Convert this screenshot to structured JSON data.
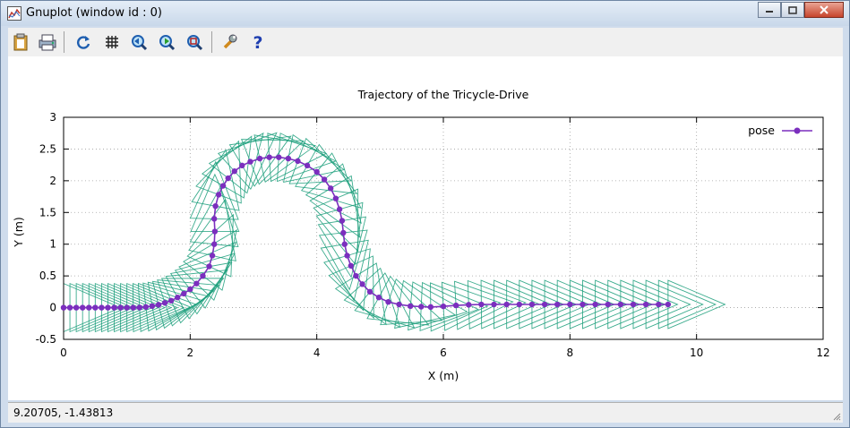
{
  "window": {
    "title": "Gnuplot (window id : 0)"
  },
  "toolbar": {
    "buttons": [
      {
        "name": "copy-clipboard-button",
        "icon": "clipboard-icon"
      },
      {
        "name": "print-button",
        "icon": "print-icon"
      },
      {
        "name": "replot-button",
        "icon": "refresh-icon"
      },
      {
        "name": "grid-button",
        "icon": "grid-icon"
      },
      {
        "name": "zoom-prev-button",
        "icon": "zoom-previous-icon"
      },
      {
        "name": "zoom-next-button",
        "icon": "zoom-next-icon"
      },
      {
        "name": "autoscale-button",
        "icon": "zoom-autoscale-icon"
      },
      {
        "name": "options-button",
        "icon": "wrench-icon"
      },
      {
        "name": "help-button",
        "icon": "help-icon"
      }
    ]
  },
  "status": {
    "coords": "9.20705, -1.43813"
  },
  "colors": {
    "pose": "#7b2fbe",
    "body": "#1a9e7a"
  },
  "chart_data": {
    "type": "line",
    "title": "Trajectory of the Tricycle-Drive",
    "xlabel": "X (m)",
    "ylabel": "Y (m)",
    "xlim": [
      0,
      12
    ],
    "ylim": [
      -0.5,
      3
    ],
    "xticks": [
      0,
      2,
      4,
      6,
      8,
      10,
      12
    ],
    "yticks": [
      -0.5,
      0,
      0.5,
      1,
      1.5,
      2,
      2.5,
      3
    ],
    "grid": true,
    "legend_position": "top-right",
    "series": [
      {
        "name": "pose",
        "x": [
          0,
          0.1,
          0.2,
          0.3,
          0.4,
          0.5,
          0.6,
          0.7,
          0.8,
          0.9,
          1.0,
          1.1,
          1.2,
          1.3,
          1.4,
          1.5,
          1.6,
          1.7,
          1.8,
          1.9,
          2.0,
          2.1,
          2.2,
          2.3,
          2.35,
          2.38,
          2.39,
          2.38,
          2.4,
          2.45,
          2.52,
          2.6,
          2.7,
          2.82,
          2.95,
          3.1,
          3.25,
          3.4,
          3.55,
          3.7,
          3.85,
          4.0,
          4.12,
          4.22,
          4.3,
          4.36,
          4.4,
          4.42,
          4.44,
          4.48,
          4.54,
          4.62,
          4.72,
          4.84,
          4.98,
          5.13,
          5.3,
          5.48,
          5.65,
          5.8,
          6.0,
          6.2,
          6.4,
          6.6,
          6.8,
          7.0,
          7.2,
          7.4,
          7.6,
          7.8,
          8.0,
          8.2,
          8.4,
          8.6,
          8.8,
          9.0,
          9.2,
          9.4,
          9.55
        ],
        "y": [
          0,
          0,
          0,
          0,
          0,
          0,
          0,
          0,
          0,
          0,
          0,
          0,
          0.002,
          0.01,
          0.025,
          0.045,
          0.075,
          0.11,
          0.16,
          0.22,
          0.29,
          0.38,
          0.5,
          0.65,
          0.82,
          1.0,
          1.2,
          1.4,
          1.6,
          1.78,
          1.92,
          2.04,
          2.15,
          2.24,
          2.3,
          2.35,
          2.37,
          2.37,
          2.35,
          2.31,
          2.24,
          2.14,
          2.02,
          1.88,
          1.72,
          1.55,
          1.37,
          1.18,
          1.0,
          0.82,
          0.66,
          0.5,
          0.37,
          0.25,
          0.16,
          0.09,
          0.05,
          0.025,
          0.015,
          0.01,
          0.02,
          0.035,
          0.045,
          0.05,
          0.05,
          0.05,
          0.05,
          0.05,
          0.05,
          0.05,
          0.05,
          0.05,
          0.05,
          0.05,
          0.05,
          0.05,
          0.05,
          0.05,
          0.05
        ]
      }
    ]
  }
}
